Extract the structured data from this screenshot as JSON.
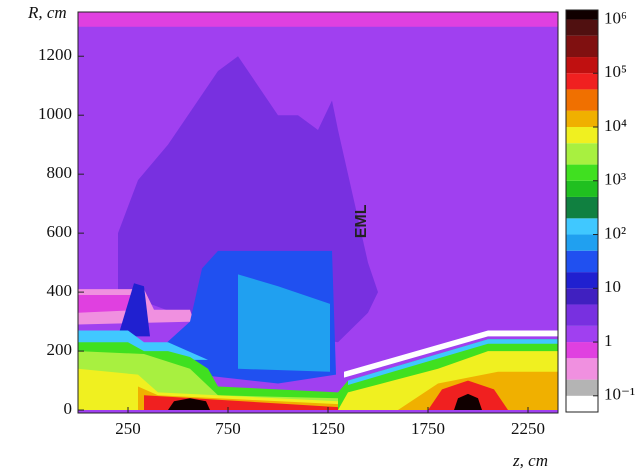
{
  "chart_data": {
    "type": "heatmap",
    "x_label": "z, cm",
    "y_label": "R, cm",
    "xlim": [
      0,
      2400
    ],
    "ylim": [
      -10,
      1350
    ],
    "xticks": [
      250,
      750,
      1250,
      1750,
      2250
    ],
    "yticks": [
      0,
      200,
      400,
      600,
      800,
      1000,
      1200
    ],
    "annotations": [
      {
        "text": "EML",
        "x": 1420,
        "y": 640
      }
    ],
    "colorbar": {
      "log": true,
      "levels": [
        0.05,
        0.1,
        0.2,
        0.5,
        1,
        2,
        5,
        10,
        20,
        50,
        100,
        200,
        500,
        1000,
        2000,
        5000,
        10000,
        20000,
        50000,
        100000,
        200000,
        500000,
        1000000,
        1500000
      ],
      "colors": [
        "#ffffff",
        "#b4b4b4",
        "#f090e0",
        "#e040e0",
        "#a040f0",
        "#7830e0",
        "#4020c0",
        "#2020d0",
        "#2050f0",
        "#20a0f0",
        "#40c8ff",
        "#108040",
        "#20c020",
        "#40e020",
        "#a8f040",
        "#f0f020",
        "#f0b000",
        "#f07000",
        "#f02020",
        "#c01010",
        "#801010",
        "#501010",
        "#100000"
      ],
      "ticks": [
        {
          "value": 0.1,
          "label": "10⁻¹"
        },
        1,
        10,
        {
          "value": 100,
          "label": "10²"
        },
        {
          "value": 1000,
          "label": "10³"
        },
        {
          "value": 10000,
          "label": "10⁴"
        },
        {
          "value": 100000,
          "label": "10⁵"
        },
        {
          "value": 1000000,
          "label": "10⁶"
        }
      ]
    },
    "regions": [
      {
        "value": 1.5,
        "points": [
          [
            0,
            -10
          ],
          [
            2400,
            -10
          ],
          [
            2400,
            1350
          ],
          [
            0,
            1350
          ]
        ]
      },
      {
        "value": 0.7,
        "points": [
          [
            0,
            1300
          ],
          [
            2400,
            1300
          ],
          [
            2400,
            1350
          ],
          [
            0,
            1350
          ]
        ]
      },
      {
        "value": 3,
        "points": [
          [
            200,
            400
          ],
          [
            200,
            600
          ],
          [
            300,
            780
          ],
          [
            450,
            900
          ],
          [
            600,
            1050
          ],
          [
            700,
            1150
          ],
          [
            800,
            1200
          ],
          [
            900,
            1100
          ],
          [
            1000,
            1000
          ],
          [
            1100,
            1000
          ],
          [
            1200,
            950
          ],
          [
            1270,
            1050
          ],
          [
            1300,
            950
          ],
          [
            1350,
            800
          ],
          [
            1400,
            650
          ],
          [
            1450,
            500
          ],
          [
            1500,
            400
          ],
          [
            1450,
            330
          ],
          [
            1300,
            230
          ],
          [
            600,
            300
          ]
        ]
      },
      {
        "value": 0.3,
        "points": [
          [
            0,
            290
          ],
          [
            0,
            410
          ],
          [
            330,
            410
          ],
          [
            380,
            340
          ],
          [
            560,
            340
          ],
          [
            580,
            300
          ]
        ]
      },
      {
        "value": 0.7,
        "points": [
          [
            0,
            330
          ],
          [
            0,
            390
          ],
          [
            300,
            390
          ],
          [
            330,
            340
          ]
        ]
      },
      {
        "value": 15,
        "points": [
          [
            200,
            250
          ],
          [
            280,
            430
          ],
          [
            330,
            420
          ],
          [
            360,
            250
          ]
        ]
      },
      {
        "value": 25,
        "points": [
          [
            430,
            220
          ],
          [
            560,
            300
          ],
          [
            620,
            480
          ],
          [
            700,
            540
          ],
          [
            1270,
            540
          ],
          [
            1290,
            120
          ],
          [
            1000,
            90
          ],
          [
            600,
            120
          ]
        ]
      },
      {
        "value": 60,
        "points": [
          [
            800,
            140
          ],
          [
            800,
            460
          ],
          [
            1000,
            420
          ],
          [
            1260,
            360
          ],
          [
            1260,
            130
          ]
        ]
      },
      {
        "value": 150,
        "points": [
          [
            0,
            170
          ],
          [
            0,
            270
          ],
          [
            250,
            270
          ],
          [
            330,
            230
          ],
          [
            450,
            230
          ],
          [
            650,
            170
          ]
        ]
      },
      {
        "value": 1500,
        "points": [
          [
            0,
            0
          ],
          [
            0,
            230
          ],
          [
            250,
            230
          ],
          [
            330,
            200
          ],
          [
            450,
            200
          ],
          [
            560,
            180
          ],
          [
            650,
            140
          ],
          [
            700,
            80
          ],
          [
            1300,
            60
          ],
          [
            1300,
            0
          ]
        ]
      },
      {
        "value": 3000,
        "points": [
          [
            0,
            0
          ],
          [
            0,
            200
          ],
          [
            330,
            190
          ],
          [
            560,
            140
          ],
          [
            700,
            50
          ],
          [
            1300,
            40
          ],
          [
            1300,
            0
          ]
        ]
      },
      {
        "value": 7000,
        "points": [
          [
            0,
            0
          ],
          [
            0,
            140
          ],
          [
            300,
            120
          ],
          [
            400,
            60
          ],
          [
            1300,
            30
          ],
          [
            1300,
            0
          ]
        ]
      },
      {
        "value": 15000,
        "points": [
          [
            300,
            0
          ],
          [
            300,
            80
          ],
          [
            400,
            50
          ],
          [
            1300,
            20
          ],
          [
            1300,
            0
          ]
        ]
      },
      {
        "value": 70000,
        "points": [
          [
            330,
            0
          ],
          [
            330,
            50
          ],
          [
            1300,
            10
          ],
          [
            1300,
            0
          ]
        ]
      },
      {
        "value": 1200000,
        "points": [
          [
            450,
            0
          ],
          [
            480,
            30
          ],
          [
            560,
            40
          ],
          [
            640,
            30
          ],
          [
            660,
            0
          ]
        ]
      },
      {
        "value": 1500,
        "points": [
          [
            1300,
            0
          ],
          [
            1300,
            60
          ],
          [
            1350,
            100
          ],
          [
            2050,
            240
          ],
          [
            2400,
            240
          ],
          [
            2400,
            0
          ]
        ]
      },
      {
        "value": 150,
        "points": [
          [
            1350,
            85
          ],
          [
            2050,
            225
          ],
          [
            2400,
            225
          ],
          [
            2400,
            240
          ],
          [
            2050,
            240
          ],
          [
            1350,
            100
          ]
        ]
      },
      {
        "value": 0.07,
        "points": [
          [
            1330,
            110
          ],
          [
            2050,
            250
          ],
          [
            2400,
            250
          ],
          [
            2400,
            270
          ],
          [
            2050,
            270
          ],
          [
            1330,
            130
          ]
        ]
      },
      {
        "value": 7000,
        "points": [
          [
            1300,
            0
          ],
          [
            1350,
            60
          ],
          [
            1800,
            140
          ],
          [
            2050,
            200
          ],
          [
            2400,
            200
          ],
          [
            2400,
            0
          ]
        ]
      },
      {
        "value": 15000,
        "points": [
          [
            1600,
            0
          ],
          [
            1800,
            90
          ],
          [
            2100,
            130
          ],
          [
            2400,
            130
          ],
          [
            2400,
            0
          ]
        ]
      },
      {
        "value": 70000,
        "points": [
          [
            1750,
            0
          ],
          [
            1820,
            70
          ],
          [
            1950,
            100
          ],
          [
            2080,
            70
          ],
          [
            2150,
            0
          ]
        ]
      },
      {
        "value": 1200000,
        "points": [
          [
            1880,
            0
          ],
          [
            1900,
            40
          ],
          [
            1950,
            55
          ],
          [
            2000,
            40
          ],
          [
            2020,
            0
          ]
        ]
      }
    ]
  }
}
